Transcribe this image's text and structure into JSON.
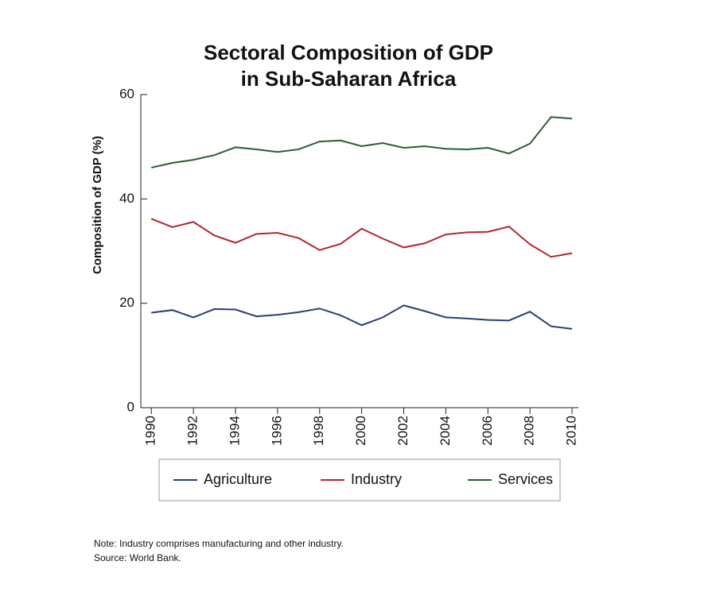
{
  "chart_data": {
    "type": "line",
    "title": [
      "Sectoral Composition of GDP",
      "in Sub-Saharan Africa"
    ],
    "y_label": "Composition of GDP (%)",
    "x": [
      1990,
      1991,
      1992,
      1993,
      1994,
      1995,
      1996,
      1997,
      1998,
      1999,
      2000,
      2001,
      2002,
      2003,
      2004,
      2005,
      2006,
      2007,
      2008,
      2009,
      2010
    ],
    "series": [
      {
        "name": "Agriculture",
        "color": "#283f73",
        "values": [
          18.2,
          18.7,
          17.3,
          18.9,
          18.8,
          17.5,
          17.8,
          18.3,
          19.0,
          17.7,
          15.8,
          17.3,
          19.6,
          18.5,
          17.3,
          17.1,
          16.8,
          16.7,
          18.4,
          15.6,
          15.1
        ]
      },
      {
        "name": "Industry",
        "color": "#b1282e",
        "values": [
          36.2,
          34.6,
          35.6,
          33.0,
          31.6,
          33.3,
          33.5,
          32.5,
          30.2,
          31.4,
          34.3,
          32.4,
          30.7,
          31.5,
          33.2,
          33.6,
          33.7,
          34.7,
          31.3,
          28.9,
          29.6
        ]
      },
      {
        "name": "Services",
        "color": "#2a5e35",
        "values": [
          46.0,
          46.9,
          47.5,
          48.4,
          49.9,
          49.5,
          49.0,
          49.5,
          51.0,
          51.2,
          50.1,
          50.7,
          49.8,
          50.1,
          49.6,
          49.5,
          49.8,
          48.7,
          50.6,
          55.7,
          55.4
        ]
      }
    ],
    "xlim": [
      1989.5,
      2010.3
    ],
    "xticks": [
      1990,
      1992,
      1994,
      1996,
      1998,
      2000,
      2002,
      2004,
      2006,
      2008,
      2010
    ],
    "ylim": [
      0,
      60
    ],
    "yticks": [
      0,
      20,
      40,
      60
    ],
    "grid": false,
    "legend": "bottom",
    "notes": [
      "Note: Industry comprises manufacturing and other industry.",
      "Source: World Bank."
    ]
  }
}
